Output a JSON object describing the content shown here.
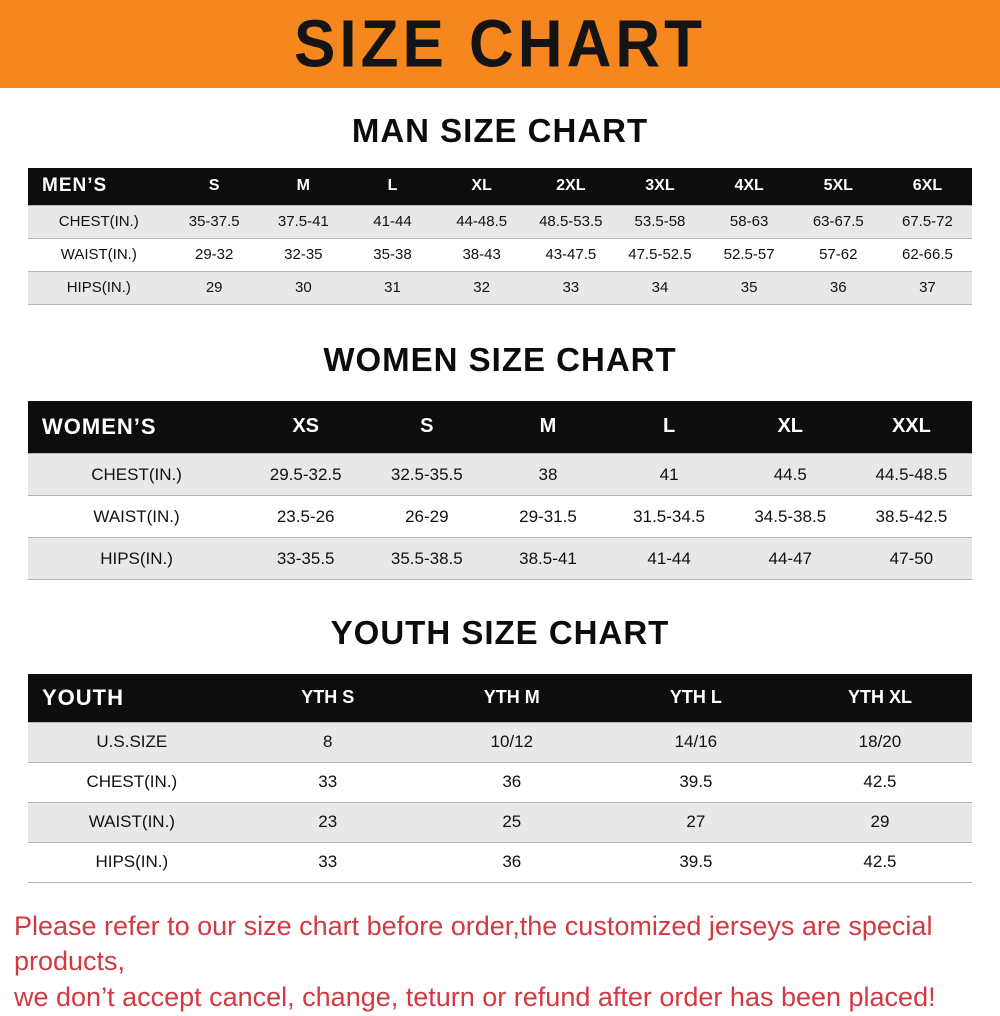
{
  "banner": {
    "title": "SIZE CHART"
  },
  "sections": [
    {
      "id": "men",
      "heading": "MAN SIZE CHART",
      "corner_label": "MEN’S",
      "columns": [
        "S",
        "M",
        "L",
        "XL",
        "2XL",
        "3XL",
        "4XL",
        "5XL",
        "6XL"
      ],
      "rows": [
        {
          "label": "CHEST(IN.)",
          "values": [
            "35-37.5",
            "37.5-41",
            "41-44",
            "44-48.5",
            "48.5-53.5",
            "53.5-58",
            "58-63",
            "63-67.5",
            "67.5-72"
          ]
        },
        {
          "label": "WAIST(IN.)",
          "values": [
            "29-32",
            "32-35",
            "35-38",
            "38-43",
            "43-47.5",
            "47.5-52.5",
            "52.5-57",
            "57-62",
            "62-66.5"
          ]
        },
        {
          "label": "HIPS(IN.)",
          "values": [
            "29",
            "30",
            "31",
            "32",
            "33",
            "34",
            "35",
            "36",
            "37"
          ]
        }
      ]
    },
    {
      "id": "women",
      "heading": "WOMEN SIZE CHART",
      "corner_label": "WOMEN’S",
      "columns": [
        "XS",
        "S",
        "M",
        "L",
        "XL",
        "XXL"
      ],
      "rows": [
        {
          "label": "CHEST(IN.)",
          "values": [
            "29.5-32.5",
            "32.5-35.5",
            "38",
            "41",
            "44.5",
            "44.5-48.5"
          ]
        },
        {
          "label": "WAIST(IN.)",
          "values": [
            "23.5-26",
            "26-29",
            "29-31.5",
            "31.5-34.5",
            "34.5-38.5",
            "38.5-42.5"
          ]
        },
        {
          "label": "HIPS(IN.)",
          "values": [
            "33-35.5",
            "35.5-38.5",
            "38.5-41",
            "41-44",
            "44-47",
            "47-50"
          ]
        }
      ]
    },
    {
      "id": "youth",
      "heading": "YOUTH SIZE CHART",
      "corner_label": "YOUTH",
      "columns": [
        "YTH S",
        "YTH M",
        "YTH L",
        "YTH XL"
      ],
      "rows": [
        {
          "label": "U.S.SIZE",
          "values": [
            "8",
            "10/12",
            "14/16",
            "18/20"
          ]
        },
        {
          "label": "CHEST(IN.)",
          "values": [
            "33",
            "36",
            "39.5",
            "42.5"
          ]
        },
        {
          "label": "WAIST(IN.)",
          "values": [
            "23",
            "25",
            "27",
            "29"
          ]
        },
        {
          "label": "HIPS(IN.)",
          "values": [
            "33",
            "36",
            "39.5",
            "42.5"
          ]
        }
      ]
    }
  ],
  "footer": {
    "line1": "Please refer to our size chart before order,the customized jerseys are special products,",
    "line2": "we don’t accept cancel, change, teturn or refund after order has been placed!"
  },
  "colors": {
    "banner_bg": "#f6861e",
    "table_header_bg": "#0d0d0d",
    "row_alt_bg": "#e8e8e8",
    "footer_text": "#d23940"
  }
}
